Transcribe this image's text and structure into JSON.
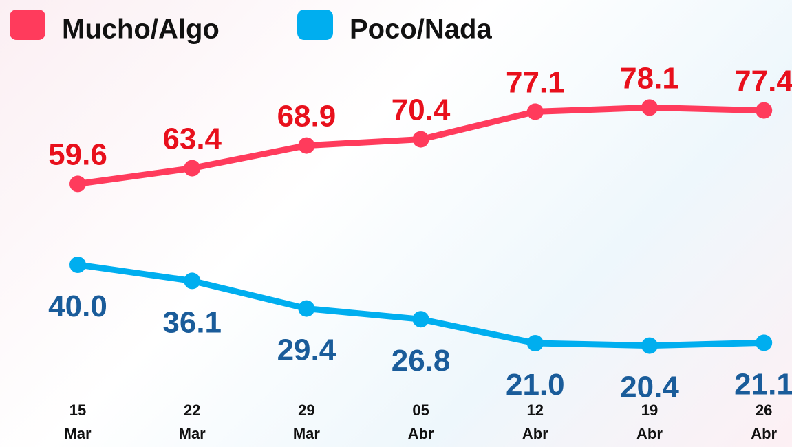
{
  "chart_data": {
    "type": "line",
    "categories": [
      "15 Mar",
      "22 Mar",
      "29 Mar",
      "05 Abr",
      "12 Abr",
      "19 Abr",
      "26 Abr"
    ],
    "series": [
      {
        "name": "Mucho/Algo",
        "color": "#ff3b5c",
        "label_color": "#e8101c",
        "values": [
          59.6,
          63.4,
          68.9,
          70.4,
          77.1,
          78.1,
          77.4
        ]
      },
      {
        "name": "Poco/Nada",
        "color": "#00aeef",
        "label_color": "#1a5c9a",
        "values": [
          40.0,
          36.1,
          29.4,
          26.8,
          21.0,
          20.4,
          21.1
        ],
        "value_labels": [
          "40.0",
          "36.1",
          "29.4",
          "26.8",
          "21.0",
          "20.4",
          "21.1"
        ]
      }
    ],
    "ylim": [
      0,
      104
    ]
  }
}
